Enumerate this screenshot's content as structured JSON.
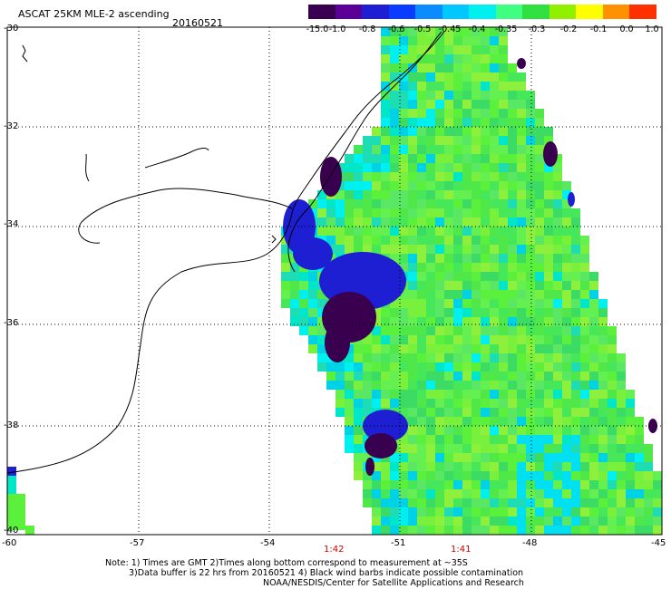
{
  "header": {
    "title": "ASCAT 25KM MLE-2 ascending",
    "date": "20160521"
  },
  "colorbar": {
    "labels": [
      "-15.0",
      "-1.0",
      "-0.8",
      "-0.6",
      "-0.5",
      "-0.45",
      "-0.4",
      "-0.35",
      "-0.3",
      "-0.2",
      "-0.1",
      "0.0",
      "1.0"
    ],
    "colors": [
      "#3a0050",
      "#5a0096",
      "#1e1ed2",
      "#0a3cff",
      "#0a8cff",
      "#00c8ff",
      "#00f0f0",
      "#40ff80",
      "#30e040",
      "#90f000",
      "#ffff00",
      "#ff9000",
      "#ff3000"
    ]
  },
  "axes": {
    "lat_labels": [
      "-30",
      "-32",
      "-34",
      "-36",
      "-38",
      "-40"
    ],
    "lon_labels": [
      "-60",
      "-57",
      "-54",
      "-51",
      "-48",
      "-45"
    ]
  },
  "times": [
    "1:42",
    "1:41"
  ],
  "footer": {
    "line1": "Note: 1) Times are GMT 2)Times along bottom correspond to measurement at ~35S",
    "line2": "3)Data buffer is 22 hrs from 20160521 4) Black wind barbs indicate possible contamination",
    "line3": "NOAA/NESDIS/Center for Satellite Applications and Research"
  }
}
